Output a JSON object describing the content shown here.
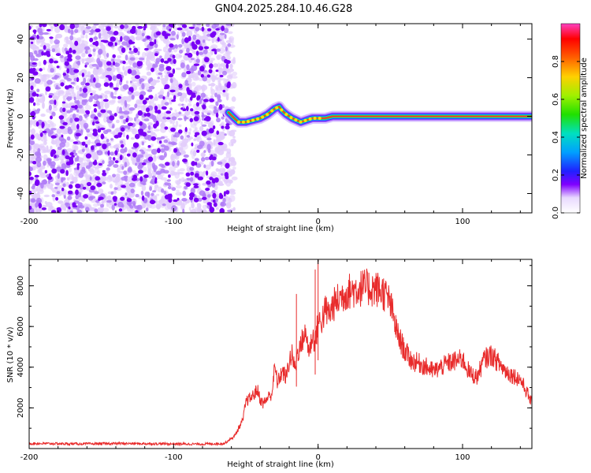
{
  "title": "GN04.2025.284.10.46.G28",
  "colors": {
    "scatter_dark": "#7a00f5",
    "scatter_light": "#e2cdfb",
    "signal_core": "#ff3030",
    "snr_line": "#e82b2b"
  },
  "chart_data": [
    {
      "type": "heatmap",
      "name": "spectrogram",
      "xlabel": "Height of straight line (km)",
      "ylabel": "Frequency (Hz)",
      "xlim": [
        -200,
        148
      ],
      "ylim": [
        -50,
        48
      ],
      "xticks": [
        -200,
        -100,
        0,
        100
      ],
      "xtick_labels": [
        "-200",
        "-100",
        "0",
        "100"
      ],
      "yticks": [
        -40,
        -20,
        0,
        20,
        40
      ],
      "ytick_labels": [
        "-40",
        "-20",
        "0",
        "20",
        "40"
      ],
      "noise_region_x": [
        -200,
        -61
      ],
      "signal_track": {
        "x": [
          -62,
          -58,
          -55,
          -50,
          -45,
          -40,
          -35,
          -30,
          -27,
          -25,
          -22,
          -18,
          -15,
          -12,
          -8,
          -4,
          0,
          5,
          10,
          20,
          40,
          60,
          80,
          100,
          120,
          148
        ],
        "y": [
          2,
          -1,
          -3,
          -3,
          -2,
          -1,
          1,
          4,
          5,
          3,
          1,
          -1,
          -2,
          -3,
          -2,
          -1,
          -1,
          -1,
          0,
          0,
          0,
          0,
          0,
          0,
          0,
          0
        ]
      },
      "colorbar": {
        "label": "Normalized spectral amplitude",
        "range": [
          0,
          1
        ],
        "ticks": [
          0.0,
          0.2,
          0.4,
          0.6,
          0.8
        ],
        "tick_labels": [
          "0.0",
          "0.2",
          "0.4",
          "0.6",
          "0.8"
        ]
      }
    },
    {
      "type": "line",
      "name": "snr",
      "xlabel": "Height of straight line (km)",
      "ylabel": "SNR (10 * v/v)",
      "xlim": [
        -200,
        148
      ],
      "ylim": [
        0,
        9300
      ],
      "xticks": [
        -200,
        -100,
        0,
        100
      ],
      "xtick_labels": [
        "-200",
        "-100",
        "0",
        "100"
      ],
      "yticks": [
        2000,
        4000,
        6000,
        8000
      ],
      "ytick_labels": [
        "2000",
        "4000",
        "6000",
        "8000"
      ],
      "series": [
        {
          "name": "SNR",
          "x": [
            -200,
            -180,
            -160,
            -140,
            -120,
            -100,
            -80,
            -65,
            -58,
            -55,
            -52,
            -50,
            -45,
            -42,
            -40,
            -38,
            -35,
            -32,
            -30,
            -28,
            -25,
            -22,
            -20,
            -18,
            -16,
            -14,
            -12,
            -10,
            -8,
            -6,
            -4,
            -2,
            0,
            2,
            5,
            8,
            10,
            15,
            20,
            25,
            30,
            35,
            40,
            45,
            48,
            50,
            52,
            55,
            60,
            65,
            70,
            75,
            80,
            85,
            90,
            95,
            100,
            105,
            110,
            115,
            120,
            125,
            130,
            135,
            140,
            145,
            148
          ],
          "y": [
            250,
            240,
            230,
            250,
            240,
            230,
            220,
            250,
            600,
            1000,
            1400,
            2300,
            2600,
            2900,
            2400,
            2200,
            2500,
            2700,
            4000,
            3200,
            3800,
            3500,
            4300,
            4600,
            3900,
            4800,
            5000,
            5600,
            5500,
            4700,
            5600,
            5200,
            6200,
            6200,
            6800,
            6600,
            7000,
            7400,
            7700,
            7800,
            7900,
            7900,
            7850,
            7700,
            7400,
            7100,
            6500,
            5600,
            4800,
            4300,
            4200,
            4000,
            3800,
            4000,
            4200,
            4300,
            4400,
            3700,
            3500,
            4400,
            4600,
            4200,
            3800,
            3600,
            3400,
            2700,
            2200
          ]
        }
      ],
      "spikes": [
        {
          "x": -15,
          "y": 7600
        },
        {
          "x": -2,
          "y": 8800
        },
        {
          "x": 0,
          "y": 9300
        }
      ]
    }
  ]
}
